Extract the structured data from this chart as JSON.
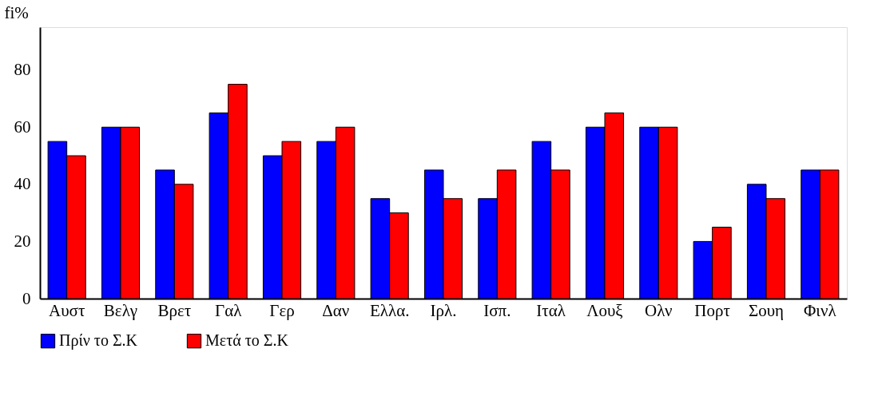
{
  "chart_data": {
    "type": "bar",
    "ylabel": "fi%",
    "categories": [
      "Αυστ",
      "Βελγ",
      "Βρετ",
      "Γαλ",
      "Γερ",
      "Δαν",
      "Ελλα.",
      "Ιρλ.",
      "Ισπ.",
      "Ιταλ",
      "Λουξ",
      "Ολν",
      "Πορτ",
      "Σουη",
      "Φινλ"
    ],
    "series": [
      {
        "name": "Πρίν το Σ.Κ",
        "color": "#0000ff",
        "values": [
          55,
          60,
          45,
          65,
          50,
          55,
          35,
          45,
          35,
          55,
          60,
          60,
          20,
          40,
          45
        ]
      },
      {
        "name": "Μετά το Σ.Κ",
        "color": "#ff0000",
        "values": [
          50,
          60,
          40,
          75,
          55,
          60,
          30,
          35,
          45,
          45,
          65,
          60,
          25,
          35,
          45
        ]
      }
    ],
    "ylim": [
      0,
      95
    ],
    "yticks": [
      0,
      20,
      40,
      60,
      80
    ],
    "grid": false,
    "legend": "bottom"
  }
}
